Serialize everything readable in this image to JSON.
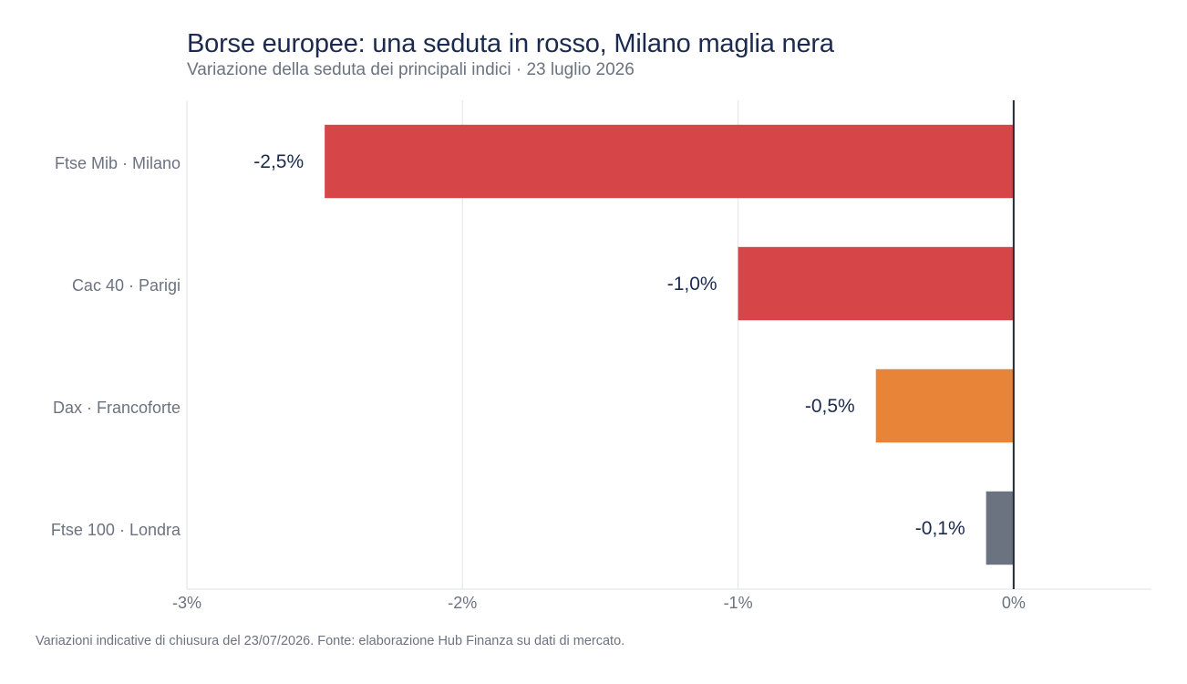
{
  "header": {
    "title": "Borse europee: una seduta in rosso, Milano maglia nera",
    "subtitle": "Variazione della seduta dei principali indici · 23 luglio 2026"
  },
  "footer": {
    "note": "Variazioni indicative di chiusura del 23/07/2026. Fonte: elaborazione Hub Finanza su dati di mercato."
  },
  "colors": {
    "title": "#1b2a4e",
    "muted": "#6b7280",
    "grid": "#e5e7eb",
    "zero_line": "#1f2937"
  },
  "chart_data": {
    "type": "bar",
    "orientation": "horizontal",
    "title": "Borse europee: una seduta in rosso, Milano maglia nera",
    "subtitle": "Variazione della seduta dei principali indici · 23 luglio 2026",
    "xlabel": "",
    "ylabel": "",
    "xlim": [
      -3,
      0.5
    ],
    "x_ticks": [
      {
        "value": -3,
        "label": "-3%"
      },
      {
        "value": -2,
        "label": "-2%"
      },
      {
        "value": -1,
        "label": "-1%"
      },
      {
        "value": 0,
        "label": "0%"
      }
    ],
    "grid": true,
    "legend": "none",
    "categories": [
      "Ftse Mib · Milano",
      "Cac 40 · Parigi",
      "Dax · Francoforte",
      "Ftse 100 · Londra"
    ],
    "values": [
      -2.5,
      -1.0,
      -0.5,
      -0.1
    ],
    "value_labels": [
      "-2,5%",
      "-1,0%",
      "-0,5%",
      "-0,1%"
    ],
    "bar_colors": [
      "#d64547",
      "#d64547",
      "#e88438",
      "#6b7280"
    ]
  }
}
